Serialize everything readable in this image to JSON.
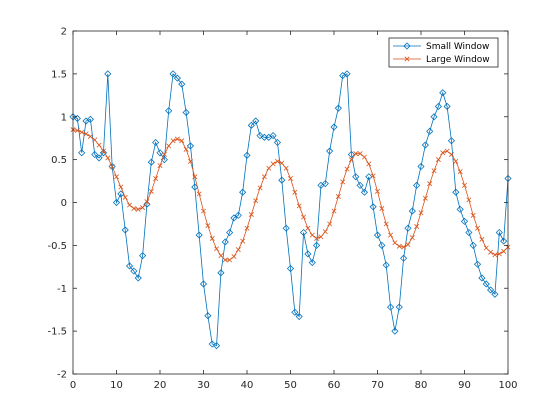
{
  "chart_data": {
    "type": "line",
    "title": "",
    "xlabel": "",
    "ylabel": "",
    "xlim": [
      0,
      100
    ],
    "ylim": [
      -2,
      2
    ],
    "x_ticks": [
      0,
      10,
      20,
      30,
      40,
      50,
      60,
      70,
      80,
      90,
      100
    ],
    "y_ticks": [
      -2,
      -1.5,
      -1,
      -0.5,
      0,
      0.5,
      1,
      1.5,
      2
    ],
    "grid": false,
    "legend": {
      "position": "top-right",
      "entries": [
        {
          "name": "Small Window",
          "color": "#0072BD",
          "marker": "diamond"
        },
        {
          "name": "Large Window",
          "color": "#D95319",
          "marker": "x"
        }
      ]
    },
    "series": [
      {
        "name": "Small Window",
        "color": "#0072BD",
        "marker": "diamond",
        "x": [
          0,
          1,
          2,
          3,
          4,
          5,
          6,
          7,
          8,
          9,
          10,
          11,
          12,
          13,
          14,
          15,
          16,
          17,
          18,
          19,
          20,
          21,
          22,
          23,
          24,
          25,
          26,
          27,
          28,
          29,
          30,
          31,
          32,
          33,
          34,
          35,
          36,
          37,
          38,
          39,
          40,
          41,
          42,
          43,
          44,
          45,
          46,
          47,
          48,
          49,
          50,
          51,
          52,
          53,
          54,
          55,
          56,
          57,
          58,
          59,
          60,
          61,
          62,
          63,
          64,
          65,
          66,
          67,
          68,
          69,
          70,
          71,
          72,
          73,
          74,
          75,
          76,
          77,
          78,
          79,
          80,
          81,
          82,
          83,
          84,
          85,
          86,
          87,
          88,
          89,
          90,
          91,
          92,
          93,
          94,
          95,
          96,
          97,
          98,
          99,
          100
        ],
        "values": [
          1.0,
          0.98,
          0.58,
          0.95,
          0.97,
          0.56,
          0.52,
          0.58,
          1.5,
          0.42,
          0.0,
          0.1,
          -0.32,
          -0.74,
          -0.8,
          -0.88,
          -0.62,
          -0.02,
          0.47,
          0.7,
          0.58,
          0.5,
          1.07,
          1.5,
          1.45,
          1.38,
          1.05,
          0.66,
          0.18,
          -0.38,
          -0.95,
          -1.32,
          -1.65,
          -1.67,
          -0.82,
          -0.46,
          -0.35,
          -0.18,
          -0.15,
          0.12,
          0.55,
          0.9,
          0.95,
          0.78,
          0.76,
          0.76,
          0.78,
          0.7,
          0.26,
          -0.3,
          -0.77,
          -1.28,
          -1.33,
          -0.35,
          -0.6,
          -0.7,
          -0.5,
          0.2,
          0.22,
          0.6,
          0.88,
          1.1,
          1.48,
          1.5,
          0.56,
          0.3,
          0.2,
          0.12,
          0.3,
          -0.05,
          -0.38,
          -0.5,
          -0.73,
          -1.22,
          -1.5,
          -1.22,
          -0.65,
          -0.3,
          -0.1,
          0.2,
          0.42,
          0.67,
          0.83,
          1.0,
          1.12,
          1.28,
          1.12,
          0.72,
          0.12,
          -0.08,
          -0.22,
          -0.35,
          -0.5,
          -0.72,
          -0.88,
          -0.95,
          -1.02,
          -1.07,
          -0.35,
          -0.45,
          0.28
        ]
      },
      {
        "name": "Large Window",
        "color": "#D95319",
        "marker": "x",
        "x": [
          0,
          1,
          2,
          3,
          4,
          5,
          6,
          7,
          8,
          9,
          10,
          11,
          12,
          13,
          14,
          15,
          16,
          17,
          18,
          19,
          20,
          21,
          22,
          23,
          24,
          25,
          26,
          27,
          28,
          29,
          30,
          31,
          32,
          33,
          34,
          35,
          36,
          37,
          38,
          39,
          40,
          41,
          42,
          43,
          44,
          45,
          46,
          47,
          48,
          49,
          50,
          51,
          52,
          53,
          54,
          55,
          56,
          57,
          58,
          59,
          60,
          61,
          62,
          63,
          64,
          65,
          66,
          67,
          68,
          69,
          70,
          71,
          72,
          73,
          74,
          75,
          76,
          77,
          78,
          79,
          80,
          81,
          82,
          83,
          84,
          85,
          86,
          87,
          88,
          89,
          90,
          91,
          92,
          93,
          94,
          95,
          96,
          97,
          98,
          99,
          100
        ],
        "values": [
          0.85,
          0.84,
          0.82,
          0.8,
          0.77,
          0.73,
          0.67,
          0.6,
          0.52,
          0.42,
          0.3,
          0.18,
          0.06,
          -0.03,
          -0.07,
          -0.08,
          -0.06,
          0.01,
          0.13,
          0.28,
          0.43,
          0.56,
          0.66,
          0.72,
          0.74,
          0.72,
          0.62,
          0.48,
          0.3,
          0.1,
          -0.1,
          -0.27,
          -0.42,
          -0.54,
          -0.62,
          -0.67,
          -0.67,
          -0.63,
          -0.55,
          -0.45,
          -0.3,
          -0.14,
          0.02,
          0.17,
          0.3,
          0.4,
          0.45,
          0.48,
          0.46,
          0.4,
          0.28,
          0.12,
          -0.04,
          -0.17,
          -0.3,
          -0.38,
          -0.42,
          -0.4,
          -0.34,
          -0.25,
          -0.1,
          0.07,
          0.24,
          0.39,
          0.5,
          0.57,
          0.57,
          0.53,
          0.45,
          0.31,
          0.13,
          -0.07,
          -0.25,
          -0.38,
          -0.47,
          -0.51,
          -0.52,
          -0.49,
          -0.41,
          -0.28,
          -0.12,
          0.05,
          0.22,
          0.37,
          0.5,
          0.58,
          0.6,
          0.56,
          0.48,
          0.36,
          0.2,
          0.03,
          -0.15,
          -0.3,
          -0.43,
          -0.53,
          -0.58,
          -0.61,
          -0.6,
          -0.57,
          -0.52
        ]
      }
    ]
  }
}
